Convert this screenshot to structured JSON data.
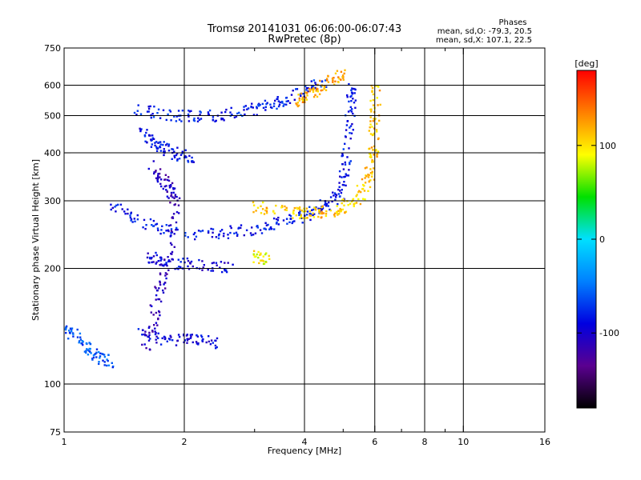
{
  "header": {
    "title": "Tromsø 20141031 06:06:00-06:07:43",
    "subtitle": "RwPretec (8p)"
  },
  "phase_info": {
    "heading": "Phases",
    "line_o": "mean, sd,O: -79.3, 20.5",
    "line_x": "mean, sd,X: 107.1, 22.5"
  },
  "chart_data": {
    "type": "scatter",
    "title": "Tromsø 20141031 06:06:00-06:07:43",
    "subtitle": "RwPretec (8p)",
    "xlabel": "Frequency [MHz]",
    "ylabel": "Stationary phase Virtual Height [km]",
    "x_scale": "log",
    "y_scale": "log",
    "xlim": [
      1,
      16
    ],
    "ylim": [
      75,
      750
    ],
    "x_ticks": [
      1,
      2,
      4,
      6,
      8,
      10,
      16
    ],
    "x_tick_labels": [
      "1",
      "2",
      "4",
      "6",
      "8",
      "10",
      "16"
    ],
    "x_minor_ticks": [
      3,
      5,
      7,
      9
    ],
    "y_ticks": [
      75,
      100,
      200,
      300,
      400,
      500,
      600,
      750
    ],
    "y_tick_labels": [
      "75",
      "100",
      "200",
      "300",
      "400",
      "500",
      "600",
      "750"
    ],
    "grid": true,
    "x_gridlines": [
      2,
      4,
      6,
      8,
      10
    ],
    "y_gridlines": [
      100,
      200,
      300,
      400,
      500,
      600
    ],
    "colorbar": {
      "label": "[deg]",
      "range": [
        -180,
        180
      ],
      "ticks": [
        -100,
        0,
        100
      ],
      "colormap": "jet-like",
      "colors": [
        "#000000",
        "#5a0090",
        "#0000e0",
        "#0080ff",
        "#00e0ff",
        "#00e000",
        "#ffff00",
        "#ff8000",
        "#ff0000"
      ]
    },
    "series": [
      {
        "name": "O",
        "mean_phase": -79.3,
        "sd_phase": 20.5,
        "traces": [
          {
            "points": [
              [
                1.28,
                292
              ],
              [
                1.6,
                262
              ],
              [
                2.0,
                245
              ],
              [
                2.6,
                248
              ],
              [
                3.2,
                256
              ],
              [
                3.8,
                268
              ],
              [
                4.4,
                286
              ],
              [
                4.9,
                310
              ],
              [
                5.1,
                380
              ],
              [
                5.2,
                500
              ],
              [
                5.3,
                610
              ]
            ],
            "phase": -85
          },
          {
            "points": [
              [
                1.5,
                520
              ],
              [
                1.9,
                500
              ],
              [
                2.3,
                498
              ],
              [
                2.8,
                510
              ],
              [
                3.3,
                530
              ],
              [
                3.9,
                570
              ],
              [
                4.5,
                615
              ]
            ],
            "phase": -80
          },
          {
            "points": [
              [
                1.55,
                460
              ],
              [
                1.7,
                420
              ],
              [
                1.85,
                400
              ],
              [
                2.1,
                390
              ]
            ],
            "phase": -85
          },
          {
            "points": [
              [
                1.6,
                215
              ],
              [
                1.8,
                208
              ],
              [
                2.1,
                204
              ],
              [
                2.6,
                202
              ]
            ],
            "phase": -95
          },
          {
            "points": [
              [
                1.55,
                135
              ],
              [
                1.8,
                130
              ],
              [
                2.1,
                130
              ],
              [
                2.4,
                128
              ]
            ],
            "phase": -95
          },
          {
            "points": [
              [
                1.65,
                370
              ],
              [
                1.8,
                330
              ],
              [
                1.9,
                300
              ],
              [
                1.8,
                200
              ],
              [
                1.7,
                160
              ],
              [
                1.6,
                120
              ]
            ],
            "phase": -110
          },
          {
            "points": [
              [
                1.0,
                140
              ],
              [
                1.1,
                130
              ],
              [
                1.2,
                120
              ],
              [
                1.3,
                112
              ]
            ],
            "phase": -60
          }
        ]
      },
      {
        "name": "X",
        "mean_phase": 107.1,
        "sd_phase": 22.5,
        "traces": [
          {
            "points": [
              [
                3.0,
                290
              ],
              [
                3.6,
                280
              ],
              [
                4.2,
                278
              ],
              [
                4.8,
                283
              ],
              [
                5.4,
                300
              ],
              [
                5.8,
                345
              ],
              [
                5.95,
                400
              ],
              [
                6.0,
                480
              ],
              [
                6.05,
                600
              ]
            ],
            "phase": 110
          },
          {
            "points": [
              [
                3.8,
                540
              ],
              [
                4.2,
                575
              ],
              [
                4.6,
                610
              ],
              [
                5.0,
                640
              ]
            ],
            "phase": 120
          },
          {
            "points": [
              [
                3.0,
                215
              ],
              [
                3.2,
                212
              ]
            ],
            "phase": 95
          }
        ]
      }
    ]
  }
}
